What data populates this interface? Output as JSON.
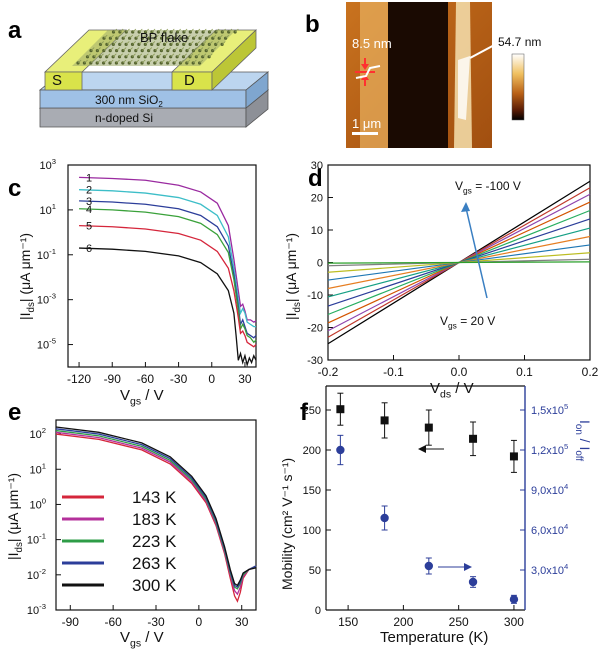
{
  "panel_letters": [
    "a",
    "b",
    "c",
    "d",
    "e",
    "f"
  ],
  "panel_a": {
    "flake_label": "BP flake",
    "source_label": "S",
    "drain_label": "D",
    "oxide_label": "300 nm SiO",
    "oxide_sub": "2",
    "substrate_label": "n-doped Si",
    "colors": {
      "electrode": "#d9e34a",
      "oxide": "#9fc1e6",
      "silicon": "#a9acb3",
      "flake": "#6f7f4f"
    }
  },
  "panel_b": {
    "thickness_label": "8.5 nm",
    "colorbar_max": "54.7 nm",
    "scale_bar": "1 μm"
  },
  "chart_data": [
    {
      "panel": "c",
      "type": "line",
      "xlabel": "V_gs / V",
      "ylabel": "|I_ds| (μA μm⁻¹)",
      "xlim": [
        -130,
        40
      ],
      "ylim_log10": [
        -6,
        3
      ],
      "xticks": [
        -120,
        -90,
        -60,
        -30,
        0,
        30
      ],
      "xtick_labels": [
        "-120",
        "-90",
        "-60",
        "-30",
        "0",
        "30"
      ],
      "yticks_exp": [
        -5,
        -3,
        -1,
        1,
        3
      ],
      "ytick_labels": [
        "10",
        "10",
        "10",
        "10",
        "10"
      ],
      "ytick_sup": [
        "-5",
        "-3",
        "-1",
        "1",
        "3"
      ],
      "series": [
        {
          "name": "1",
          "color": "#9a2aa0",
          "x": [
            -120,
            -90,
            -60,
            -30,
            -10,
            5,
            15,
            20,
            24,
            26,
            28,
            30,
            32,
            35,
            38,
            40
          ],
          "log10y": [
            2.45,
            2.4,
            2.32,
            2.1,
            1.8,
            1.3,
            0.3,
            -1.2,
            -2.6,
            -3.3,
            -3.2,
            -3.5,
            -3.9,
            -3.9,
            -4.0,
            -3.95
          ]
        },
        {
          "name": "2",
          "color": "#3dbec8",
          "x": [
            -120,
            -90,
            -60,
            -30,
            -10,
            5,
            15,
            20,
            24,
            26,
            28,
            30,
            32,
            35,
            38,
            40
          ],
          "log10y": [
            1.9,
            1.85,
            1.75,
            1.55,
            1.25,
            0.75,
            -0.2,
            -1.6,
            -3.0,
            -3.6,
            -3.4,
            -3.6,
            -4.0,
            -4.1,
            -4.2,
            -4.2
          ]
        },
        {
          "name": "3",
          "color": "#2c3e9a",
          "x": [
            -120,
            -90,
            -60,
            -30,
            -10,
            5,
            15,
            20,
            24,
            26,
            28,
            30,
            32,
            35,
            38,
            40
          ],
          "log10y": [
            1.4,
            1.35,
            1.25,
            1.05,
            0.75,
            0.25,
            -0.6,
            -1.9,
            -3.3,
            -4.1,
            -3.9,
            -4.2,
            -4.5,
            -4.6,
            -4.7,
            -4.6
          ]
        },
        {
          "name": "4",
          "color": "#3aa13a",
          "x": [
            -120,
            -90,
            -60,
            -30,
            -10,
            5,
            15,
            20,
            24,
            26,
            28,
            30,
            32,
            35,
            38,
            40
          ],
          "log10y": [
            1.05,
            1.0,
            0.9,
            0.7,
            0.4,
            -0.1,
            -0.9,
            -2.1,
            -3.5,
            -4.3,
            -4.1,
            -4.3,
            -4.6,
            -4.7,
            -4.9,
            -4.8
          ]
        },
        {
          "name": "5",
          "color": "#d5263b",
          "x": [
            -120,
            -90,
            -60,
            -30,
            -10,
            5,
            15,
            20,
            24,
            26,
            28,
            30,
            32,
            35,
            38,
            40
          ],
          "log10y": [
            0.3,
            0.25,
            0.15,
            -0.05,
            -0.35,
            -0.85,
            -1.6,
            -2.6,
            -3.8,
            -4.5,
            -4.4,
            -4.6,
            -4.9,
            -5.0,
            -5.1,
            -5.0
          ]
        },
        {
          "name": "6",
          "color": "#111111",
          "x": [
            -120,
            -90,
            -60,
            -30,
            -10,
            5,
            15,
            20,
            22,
            24,
            26,
            28,
            30,
            32,
            34,
            36,
            38,
            40
          ],
          "log10y": [
            -0.7,
            -0.75,
            -0.85,
            -1.05,
            -1.35,
            -1.85,
            -2.6,
            -3.6,
            -4.6,
            -5.7,
            -5.4,
            -5.8,
            -5.5,
            -5.9,
            -5.6,
            -5.8,
            -5.5,
            -5.7
          ]
        }
      ]
    },
    {
      "panel": "d",
      "type": "line",
      "xlabel": "V_ds / V",
      "ylabel": "|I_ds| (μA μm⁻¹)",
      "xlim": [
        -0.2,
        0.2
      ],
      "ylim": [
        -30,
        30
      ],
      "xticks": [
        -0.2,
        -0.1,
        0.0,
        0.1,
        0.2
      ],
      "xtick_labels": [
        "-0.2",
        "-0.1",
        "0.0",
        "0.1",
        "0.2"
      ],
      "yticks": [
        -30,
        -20,
        -10,
        0,
        10,
        20,
        30
      ],
      "ytick_labels": [
        "-30",
        "-20",
        "-10",
        "0",
        "10",
        "20",
        "30"
      ],
      "annotation_top": "V_gs = -100 V",
      "annotation_bottom": "V_gs = 20 V",
      "slopes": [
        125,
        115,
        105,
        93,
        80,
        67,
        53,
        40,
        27,
        15,
        5,
        1
      ],
      "colors": [
        "#000000",
        "#c0392b",
        "#8e44ad",
        "#d35400",
        "#27ae60",
        "#2c3e9a",
        "#16a085",
        "#e67e22",
        "#1f77b4",
        "#bcbd22",
        "#7f7f7f",
        "#2ca02c"
      ]
    },
    {
      "panel": "e",
      "type": "line",
      "xlabel": "V_gs / V",
      "ylabel": "|I_ds| (μA μm⁻¹)",
      "xlim": [
        -100,
        40
      ],
      "ylim_log10": [
        -3,
        2.4
      ],
      "xticks": [
        -90,
        -60,
        -30,
        0,
        30
      ],
      "xtick_labels": [
        "-90",
        "-60",
        "-30",
        "0",
        "30"
      ],
      "yticks_exp": [
        -3,
        -2,
        -1,
        0,
        1,
        2
      ],
      "ytick_labels": [
        "10",
        "10",
        "10",
        "10",
        "10",
        "10"
      ],
      "ytick_sup": [
        "-3",
        "-2",
        "-1",
        "0",
        "1",
        "2"
      ],
      "series": [
        {
          "name": "143 K",
          "color": "#d5263b",
          "x": [
            -100,
            -70,
            -40,
            -20,
            -5,
            5,
            12,
            18,
            22,
            25,
            27,
            29,
            31,
            35,
            40
          ],
          "log10y": [
            2.0,
            1.85,
            1.55,
            1.15,
            0.6,
            0.05,
            -0.6,
            -1.4,
            -2.1,
            -2.6,
            -2.75,
            -2.5,
            -2.1,
            -1.85,
            -1.75
          ]
        },
        {
          "name": "183 K",
          "color": "#b4309b",
          "x": [
            -100,
            -70,
            -40,
            -20,
            -5,
            5,
            12,
            18,
            22,
            25,
            27,
            29,
            31,
            35,
            40
          ],
          "log10y": [
            2.05,
            1.9,
            1.6,
            1.2,
            0.65,
            0.1,
            -0.55,
            -1.35,
            -2.0,
            -2.45,
            -2.55,
            -2.35,
            -2.05,
            -1.85,
            -1.75
          ]
        },
        {
          "name": "223 K",
          "color": "#2e9c47",
          "x": [
            -100,
            -70,
            -40,
            -20,
            -5,
            5,
            12,
            18,
            22,
            25,
            27,
            29,
            31,
            35,
            40
          ],
          "log10y": [
            2.1,
            1.95,
            1.65,
            1.25,
            0.7,
            0.15,
            -0.5,
            -1.3,
            -1.95,
            -2.35,
            -2.4,
            -2.25,
            -2.0,
            -1.85,
            -1.75
          ]
        },
        {
          "name": "263 K",
          "color": "#2c3e9a",
          "x": [
            -100,
            -70,
            -40,
            -20,
            -5,
            5,
            12,
            18,
            22,
            25,
            27,
            29,
            31,
            35,
            40
          ],
          "log10y": [
            2.15,
            2.0,
            1.7,
            1.3,
            0.75,
            0.2,
            -0.45,
            -1.25,
            -1.9,
            -2.3,
            -2.35,
            -2.2,
            -1.95,
            -1.85,
            -1.75
          ]
        },
        {
          "name": "300 K",
          "color": "#111111",
          "x": [
            -100,
            -70,
            -40,
            -20,
            -5,
            5,
            12,
            18,
            22,
            25,
            27,
            29,
            31,
            35,
            40
          ],
          "log10y": [
            2.2,
            2.05,
            1.75,
            1.35,
            0.8,
            0.25,
            -0.4,
            -1.2,
            -1.85,
            -2.25,
            -2.3,
            -2.15,
            -1.95,
            -1.85,
            -1.8
          ]
        }
      ]
    },
    {
      "panel": "f",
      "type": "scatter",
      "xlabel": "Temperature (K)",
      "ylabel_left": "Mobility (cm² V⁻¹ s⁻¹)",
      "ylabel_right": "I_on / I_off",
      "xlim": [
        130,
        310
      ],
      "xticks": [
        150,
        200,
        250,
        300
      ],
      "xtick_labels": [
        "150",
        "200",
        "250",
        "300"
      ],
      "ylim_left": [
        0,
        280
      ],
      "yticks_left": [
        0,
        50,
        100,
        150,
        200,
        250
      ],
      "ytick_labels_left": [
        "0",
        "50",
        "100",
        "150",
        "200",
        "250"
      ],
      "ylim_right": [
        0,
        168000
      ],
      "yticks_right": [
        30000,
        60000,
        90000,
        120000,
        150000
      ],
      "ytick_labels_right": [
        "3,0x10",
        "6,0x10",
        "9,0x10",
        "1,2x10",
        "1,5x10"
      ],
      "ytick_sup_right": [
        "4",
        "4",
        "4",
        "5",
        "5"
      ],
      "series": [
        {
          "name": "Mobility",
          "axis": "left",
          "color": "#111111",
          "marker": "square",
          "x": [
            143,
            183,
            223,
            263,
            300
          ],
          "y": [
            251,
            237,
            228,
            214,
            192
          ],
          "err": [
            20,
            22,
            22,
            21,
            20
          ]
        },
        {
          "name": "Ion/Ioff",
          "axis": "right",
          "color": "#2c3e9a",
          "marker": "circle",
          "x": [
            143,
            183,
            223,
            263,
            300
          ],
          "y": [
            120000,
            69000,
            33000,
            21000,
            8000
          ],
          "err": [
            11000,
            9000,
            6000,
            4000,
            3000
          ]
        }
      ]
    }
  ]
}
